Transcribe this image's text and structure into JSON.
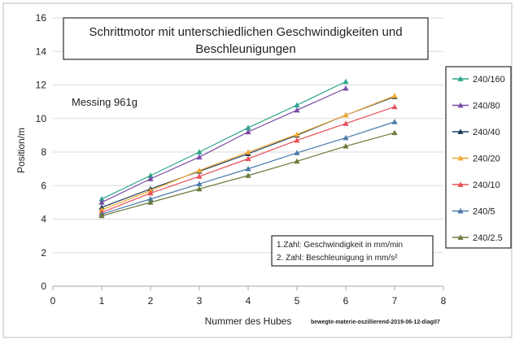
{
  "chart_data": {
    "type": "line",
    "title": "Schrittmotor mit unterschiedlichen Geschwindigkeiten und Beschleunigungen",
    "title_lines": [
      "Schrittmotor mit unterschiedlichen Geschwindigkeiten und",
      "Beschleunigungen"
    ],
    "subtitle": "Messing 961g",
    "xlabel": "Nummer des Hubes",
    "ylabel": "Position/m",
    "xlim": [
      0,
      8
    ],
    "ylim": [
      0,
      16
    ],
    "x_ticks": [
      0,
      1,
      2,
      3,
      4,
      5,
      6,
      7,
      8
    ],
    "y_ticks": [
      0,
      2,
      4,
      6,
      8,
      10,
      12,
      14,
      16
    ],
    "grid": true,
    "legend_position": "right",
    "note_lines": [
      "1.Zahl: Geschwindigkeit in mm/min",
      "2. Zahl: Beschleunigung in mm/s²"
    ],
    "source_label": "bewegte-materie-oszillierend-2019-06-12-diag07",
    "series": [
      {
        "name": "240/160",
        "color": "#2ca58d",
        "x": [
          1,
          2,
          3,
          4,
          5,
          6
        ],
        "values": [
          5.2,
          6.6,
          8.0,
          9.45,
          10.8,
          12.2
        ]
      },
      {
        "name": "240/80",
        "color": "#7a4aa6",
        "x": [
          1,
          2,
          3,
          4,
          5,
          6
        ],
        "values": [
          5.0,
          6.4,
          7.7,
          9.2,
          10.5,
          11.8
        ]
      },
      {
        "name": "240/40",
        "color": "#1a3a5a",
        "x": [
          1,
          2,
          3,
          4,
          5,
          6,
          7
        ],
        "values": [
          4.7,
          5.8,
          6.85,
          7.9,
          9.0,
          10.2,
          11.3
        ]
      },
      {
        "name": "240/20",
        "color": "#f0a830",
        "x": [
          1,
          2,
          3,
          4,
          5,
          6,
          7
        ],
        "values": [
          4.55,
          5.7,
          6.9,
          8.0,
          9.05,
          10.2,
          11.35
        ]
      },
      {
        "name": "240/10",
        "color": "#e8505a",
        "x": [
          1,
          2,
          3,
          4,
          5,
          6,
          7
        ],
        "values": [
          4.4,
          5.55,
          6.55,
          7.6,
          8.7,
          9.7,
          10.7
        ]
      },
      {
        "name": "240/5",
        "color": "#4a7aa8",
        "x": [
          1,
          2,
          3,
          4,
          5,
          6,
          7
        ],
        "values": [
          4.3,
          5.2,
          6.1,
          7.0,
          7.95,
          8.85,
          9.8
        ]
      },
      {
        "name": "240/2.5",
        "color": "#6a7a3a",
        "x": [
          1,
          2,
          3,
          4,
          5,
          6,
          7
        ],
        "values": [
          4.2,
          5.0,
          5.8,
          6.6,
          7.45,
          8.35,
          9.15
        ]
      }
    ]
  }
}
